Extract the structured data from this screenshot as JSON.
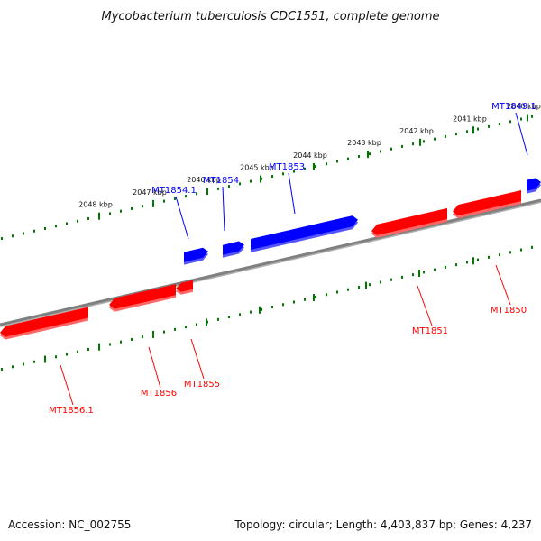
{
  "title": "Mycobacterium tuberculosis CDC1551, complete genome",
  "footer": {
    "accession": "Accession: NC_002755",
    "summary": "Topology: circular; Length: 4,403,837 bp; Genes: 4,237"
  },
  "colors": {
    "forward": "#0000ff",
    "forward_light": "#5555ff",
    "reverse": "#ff0000",
    "reverse_light": "#ff6666",
    "backbone": "#808080",
    "ticks": "#007700"
  },
  "ticks": [
    {
      "label": "2040 kbp",
      "kbp": 2040
    },
    {
      "label": "2041 kbp",
      "kbp": 2041
    },
    {
      "label": "2042 kbp",
      "kbp": 2042
    },
    {
      "label": "2043 kbp",
      "kbp": 2043
    },
    {
      "label": "2044 kbp",
      "kbp": 2044
    },
    {
      "label": "2045 kbp",
      "kbp": 2045
    },
    {
      "label": "2046 kbp",
      "kbp": 2046
    },
    {
      "label": "2047 kbp",
      "kbp": 2047
    },
    {
      "label": "2048 kbp",
      "kbp": 2048
    }
  ],
  "genes_forward": [
    {
      "label": "MT1849.1"
    },
    {
      "label": "MT1853"
    },
    {
      "label": "MT1854"
    },
    {
      "label": "MT1854.1"
    }
  ],
  "genes_reverse": [
    {
      "label": "MT1850"
    },
    {
      "label": "MT1851"
    },
    {
      "label": "MT1855"
    },
    {
      "label": "MT1856"
    },
    {
      "label": "MT1856.1"
    }
  ]
}
